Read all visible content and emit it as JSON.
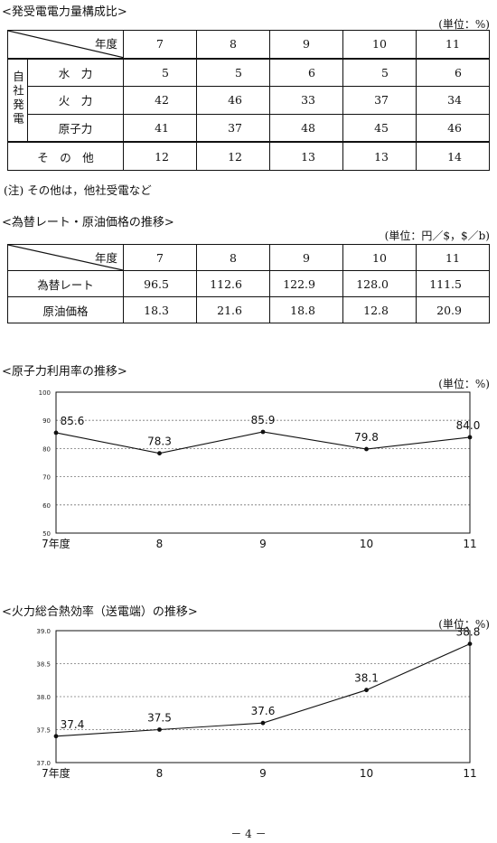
{
  "sections": {
    "composition": {
      "title": "<発受電電力量構成比>",
      "unit": "(単位：%)",
      "year_header": "年度",
      "years": [
        "7",
        "8",
        "9",
        "10",
        "11"
      ],
      "group_label": "自社発電",
      "rows": [
        {
          "label": "水　力",
          "values": [
            "5",
            "5",
            "6",
            "5",
            "6"
          ]
        },
        {
          "label": "火　力",
          "values": [
            "42",
            "46",
            "33",
            "37",
            "34"
          ]
        },
        {
          "label": "原子力",
          "values": [
            "41",
            "37",
            "48",
            "45",
            "46"
          ]
        }
      ],
      "other": {
        "label": "そ　の　他",
        "values": [
          "12",
          "12",
          "13",
          "13",
          "14"
        ]
      },
      "note": "(注) その他は，他社受電など"
    },
    "exchange": {
      "title": "<為替レート・原油価格の推移>",
      "unit": "(単位：円／$，$／b)",
      "year_header": "年度",
      "years": [
        "7",
        "8",
        "9",
        "10",
        "11"
      ],
      "rows": [
        {
          "label": "為替レート",
          "values": [
            "96.5",
            "112.6",
            "122.9",
            "128.0",
            "111.5"
          ]
        },
        {
          "label": "原油価格",
          "values": [
            "18.3",
            "21.6",
            "18.8",
            "12.8",
            "20.9"
          ]
        }
      ]
    },
    "nuclear": {
      "title": "<原子力利用率の推移>",
      "unit": "(単位：%)"
    },
    "thermal": {
      "title": "<火力総合熱効率（送電端）の推移>",
      "unit": "(単位：%)"
    }
  },
  "chart_data": [
    {
      "type": "line",
      "title": "<原子力利用率の推移>",
      "categories": [
        "7年度",
        "8",
        "9",
        "10",
        "11"
      ],
      "values": [
        85.6,
        78.3,
        85.9,
        79.8,
        84.0
      ],
      "value_labels": [
        "85.6",
        "78.3",
        "85.9",
        "79.8",
        "84.0"
      ],
      "ylim": [
        50,
        100
      ],
      "yticks": [
        "100",
        "90",
        "80",
        "70",
        "60",
        "50"
      ],
      "grid": true,
      "unit": "(単位：%)"
    },
    {
      "type": "line",
      "title": "<火力総合熱効率（送電端）の推移>",
      "categories": [
        "7年度",
        "8",
        "9",
        "10",
        "11"
      ],
      "values": [
        37.4,
        37.5,
        37.6,
        38.1,
        38.8
      ],
      "value_labels": [
        "37.4",
        "37.5",
        "37.6",
        "38.1",
        "38.8"
      ],
      "ylim": [
        37.0,
        39.0
      ],
      "yticks": [
        "39.0",
        "38.5",
        "38.0",
        "37.5",
        "37.0"
      ],
      "grid": true,
      "unit": "(単位：%)"
    }
  ],
  "footer": {
    "page": "－ 4 －"
  }
}
